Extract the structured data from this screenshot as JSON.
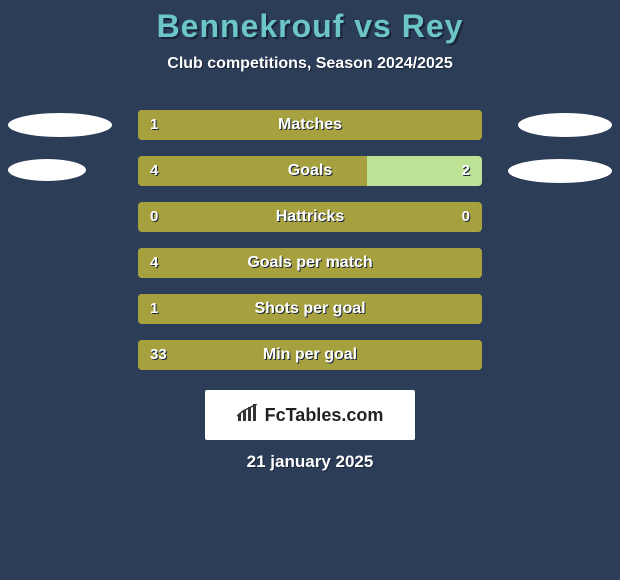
{
  "header": {
    "title": "Bennekrouf vs Rey",
    "subtitle": "Club competitions, Season 2024/2025",
    "title_color": "#6cc5c7",
    "subtitle_color": "#ffffff"
  },
  "chart": {
    "background": "#2c3d57",
    "bar_bg_color": "#a7a03f",
    "bar_full_width": 344,
    "player_left_color": "#a7a03f",
    "player_right_color": "#bce395",
    "ellipse_left_color": "#ffffff",
    "ellipse_right_color": "#ffffff",
    "text_color": "#ffffff",
    "shadow_color": "#1a2538",
    "rows": [
      {
        "label": "Matches",
        "left_value": "1",
        "right_value": "",
        "left_fill": 344,
        "right_fill": 0,
        "ellipse_left_w": 104,
        "ellipse_left_h": 24,
        "ellipse_right_w": 94,
        "ellipse_right_h": 24
      },
      {
        "label": "Goals",
        "left_value": "4",
        "right_value": "2",
        "left_fill": 229,
        "right_fill": 115,
        "ellipse_left_w": 78,
        "ellipse_left_h": 22,
        "ellipse_right_w": 104,
        "ellipse_right_h": 24
      },
      {
        "label": "Hattricks",
        "left_value": "0",
        "right_value": "0",
        "left_fill": 0,
        "right_fill": 0,
        "ellipse_left_w": 0,
        "ellipse_left_h": 0,
        "ellipse_right_w": 0,
        "ellipse_right_h": 0
      },
      {
        "label": "Goals per match",
        "left_value": "4",
        "right_value": "",
        "left_fill": 344,
        "right_fill": 0,
        "ellipse_left_w": 0,
        "ellipse_left_h": 0,
        "ellipse_right_w": 0,
        "ellipse_right_h": 0
      },
      {
        "label": "Shots per goal",
        "left_value": "1",
        "right_value": "",
        "left_fill": 344,
        "right_fill": 0,
        "ellipse_left_w": 0,
        "ellipse_left_h": 0,
        "ellipse_right_w": 0,
        "ellipse_right_h": 0
      },
      {
        "label": "Min per goal",
        "left_value": "33",
        "right_value": "",
        "left_fill": 344,
        "right_fill": 0,
        "ellipse_left_w": 0,
        "ellipse_left_h": 0,
        "ellipse_right_w": 0,
        "ellipse_right_h": 0
      }
    ]
  },
  "brand": {
    "label": "FcTables.com",
    "bg": "#ffffff",
    "text_color": "#222222"
  },
  "footer": {
    "date": "21 january 2025"
  }
}
